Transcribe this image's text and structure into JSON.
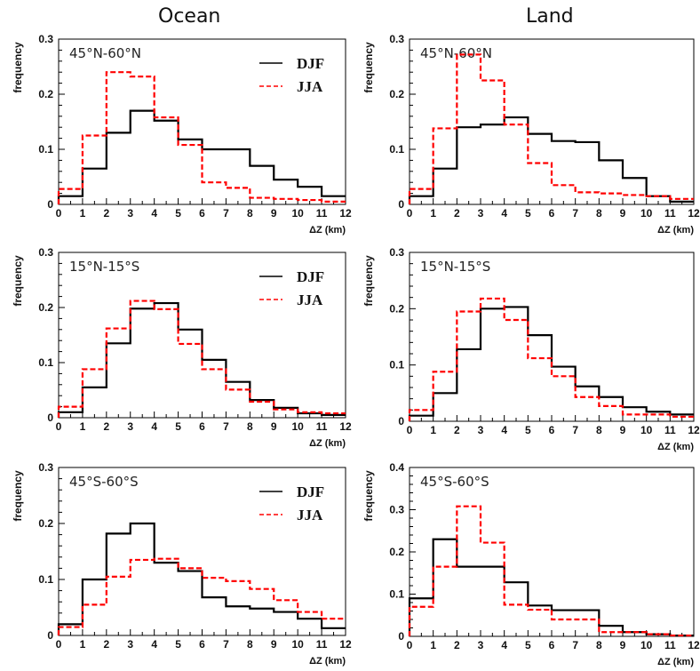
{
  "figure": {
    "column_titles": [
      "Ocean",
      "Land"
    ]
  },
  "chart_data": [
    {
      "type": "histogram",
      "position": "row1-left",
      "title": "Ocean",
      "subtitle": "45°N-60°N",
      "xlabel": "ΔZ (km)",
      "ylabel": "frequency",
      "bins": [
        0,
        1,
        2,
        3,
        4,
        5,
        6,
        7,
        8,
        9,
        10,
        11,
        12
      ],
      "xlim": [
        0,
        12
      ],
      "ylim": [
        0,
        0.3
      ],
      "yticks": [
        0,
        0.1,
        0.2,
        0.3
      ],
      "ytick_labels": [
        "0",
        "0.1",
        "0.2",
        "0.3"
      ],
      "xticks": [
        0,
        1,
        2,
        3,
        4,
        5,
        6,
        7,
        8,
        9,
        10,
        11,
        12
      ],
      "show_legend": true,
      "show_xlabel": true,
      "series": [
        {
          "name": "DJF",
          "color": "#000000",
          "style": "solid",
          "values": [
            0.015,
            0.065,
            0.13,
            0.17,
            0.152,
            0.118,
            0.1,
            0.1,
            0.07,
            0.045,
            0.032,
            0.015
          ]
        },
        {
          "name": "JJA",
          "color": "#ff0000",
          "style": "dashed",
          "values": [
            0.028,
            0.125,
            0.24,
            0.232,
            0.158,
            0.108,
            0.04,
            0.03,
            0.012,
            0.01,
            0.008,
            0.005
          ]
        }
      ]
    },
    {
      "type": "histogram",
      "position": "row1-right",
      "title": "Land",
      "subtitle": "45°N-60°N",
      "xlabel": "ΔZ (km)",
      "ylabel": "frequency",
      "bins": [
        0,
        1,
        2,
        3,
        4,
        5,
        6,
        7,
        8,
        9,
        10,
        11,
        12
      ],
      "xlim": [
        0,
        12
      ],
      "ylim": [
        0,
        0.3
      ],
      "yticks": [
        0,
        0.1,
        0.2,
        0.3
      ],
      "ytick_labels": [
        "0",
        "0.1",
        "0.2",
        "0.3"
      ],
      "xticks": [
        0,
        1,
        2,
        3,
        4,
        5,
        6,
        7,
        8,
        9,
        10,
        11,
        12
      ],
      "show_legend": false,
      "show_xlabel": true,
      "series": [
        {
          "name": "DJF",
          "color": "#000000",
          "style": "solid",
          "values": [
            0.015,
            0.065,
            0.14,
            0.145,
            0.158,
            0.128,
            0.115,
            0.113,
            0.08,
            0.048,
            0.015,
            0.005
          ]
        },
        {
          "name": "JJA",
          "color": "#ff0000",
          "style": "dashed",
          "values": [
            0.028,
            0.138,
            0.272,
            0.225,
            0.145,
            0.075,
            0.035,
            0.022,
            0.02,
            0.017,
            0.015,
            0.01
          ]
        }
      ]
    },
    {
      "type": "histogram",
      "position": "row2-left",
      "title": "",
      "subtitle": "15°N-15°S",
      "xlabel": "ΔZ (km)",
      "ylabel": "frequency",
      "bins": [
        0,
        1,
        2,
        3,
        4,
        5,
        6,
        7,
        8,
        9,
        10,
        11,
        12
      ],
      "xlim": [
        0,
        12
      ],
      "ylim": [
        0,
        0.3
      ],
      "yticks": [
        0,
        0.1,
        0.2,
        0.3
      ],
      "ytick_labels": [
        "0",
        "0.1",
        "0.2",
        "0.3"
      ],
      "xticks": [
        0,
        1,
        2,
        3,
        4,
        5,
        6,
        7,
        8,
        9,
        10,
        11,
        12
      ],
      "show_legend": true,
      "show_xlabel": true,
      "series": [
        {
          "name": "DJF",
          "color": "#000000",
          "style": "solid",
          "values": [
            0.01,
            0.055,
            0.135,
            0.198,
            0.208,
            0.16,
            0.105,
            0.065,
            0.032,
            0.018,
            0.008,
            0.005
          ]
        },
        {
          "name": "JJA",
          "color": "#ff0000",
          "style": "dashed",
          "values": [
            0.02,
            0.088,
            0.162,
            0.212,
            0.197,
            0.134,
            0.088,
            0.051,
            0.029,
            0.015,
            0.01,
            0.008
          ]
        }
      ]
    },
    {
      "type": "histogram",
      "position": "row2-right",
      "title": "",
      "subtitle": "15°N-15°S",
      "xlabel": "ΔZ (km)",
      "ylabel": "frequency",
      "bins": [
        0,
        1,
        2,
        3,
        4,
        5,
        6,
        7,
        8,
        9,
        10,
        11,
        12
      ],
      "xlim": [
        0,
        12
      ],
      "ylim": [
        0,
        0.3
      ],
      "yticks": [
        0,
        0.1,
        0.2,
        0.3
      ],
      "ytick_labels": [
        "0",
        "0.1",
        "0.2",
        "0.3"
      ],
      "xticks": [
        0,
        1,
        2,
        3,
        4,
        5,
        6,
        7,
        8,
        9,
        10,
        11,
        12
      ],
      "show_legend": false,
      "show_xlabel": true,
      "series": [
        {
          "name": "DJF",
          "color": "#000000",
          "style": "solid",
          "values": [
            0.01,
            0.05,
            0.128,
            0.2,
            0.203,
            0.153,
            0.097,
            0.062,
            0.043,
            0.025,
            0.017,
            0.012
          ]
        },
        {
          "name": "JJA",
          "color": "#ff0000",
          "style": "dashed",
          "values": [
            0.02,
            0.088,
            0.195,
            0.218,
            0.18,
            0.112,
            0.08,
            0.043,
            0.027,
            0.012,
            0.012,
            0.008
          ]
        }
      ]
    },
    {
      "type": "histogram",
      "position": "row3-left",
      "title": "",
      "subtitle": "45°S-60°S",
      "xlabel": "ΔZ (km)",
      "ylabel": "frequency",
      "bins": [
        0,
        1,
        2,
        3,
        4,
        5,
        6,
        7,
        8,
        9,
        10,
        11,
        12
      ],
      "xlim": [
        0,
        12
      ],
      "ylim": [
        0,
        0.3
      ],
      "yticks": [
        0,
        0.1,
        0.2,
        0.3
      ],
      "ytick_labels": [
        "0",
        "0.1",
        "0.2",
        "0.3"
      ],
      "xticks": [
        0,
        1,
        2,
        3,
        4,
        5,
        6,
        7,
        8,
        9,
        10,
        11,
        12
      ],
      "show_legend": true,
      "show_xlabel": true,
      "series": [
        {
          "name": "DJF",
          "color": "#000000",
          "style": "solid",
          "values": [
            0.02,
            0.1,
            0.182,
            0.2,
            0.13,
            0.115,
            0.068,
            0.052,
            0.048,
            0.042,
            0.03,
            0.013
          ]
        },
        {
          "name": "JJA",
          "color": "#ff0000",
          "style": "dashed",
          "values": [
            0.015,
            0.055,
            0.105,
            0.135,
            0.137,
            0.12,
            0.103,
            0.097,
            0.083,
            0.063,
            0.042,
            0.03
          ]
        }
      ]
    },
    {
      "type": "histogram",
      "position": "row3-right",
      "title": "",
      "subtitle": "45°S-60°S",
      "xlabel": "ΔZ (km)",
      "ylabel": "frequency",
      "bins": [
        0,
        1,
        2,
        3,
        4,
        5,
        6,
        7,
        8,
        9,
        10,
        11,
        12
      ],
      "xlim": [
        0,
        12
      ],
      "ylim": [
        0,
        0.4
      ],
      "yticks": [
        0,
        0.1,
        0.2,
        0.3,
        0.4
      ],
      "ytick_labels": [
        "0",
        "0.1",
        "0.2",
        "0.3",
        "0.4"
      ],
      "xticks": [
        0,
        1,
        2,
        3,
        4,
        5,
        6,
        7,
        8,
        9,
        10,
        11,
        12
      ],
      "show_legend": false,
      "show_xlabel": true,
      "series": [
        {
          "name": "DJF",
          "color": "#000000",
          "style": "solid",
          "values": [
            0.09,
            0.23,
            0.165,
            0.165,
            0.128,
            0.073,
            0.062,
            0.062,
            0.025,
            0.01,
            0.005,
            0.002
          ]
        },
        {
          "name": "JJA",
          "color": "#ff0000",
          "style": "dashed",
          "values": [
            0.07,
            0.165,
            0.308,
            0.222,
            0.075,
            0.063,
            0.04,
            0.04,
            0.01,
            0.01,
            0.005,
            0.002
          ]
        }
      ]
    }
  ]
}
